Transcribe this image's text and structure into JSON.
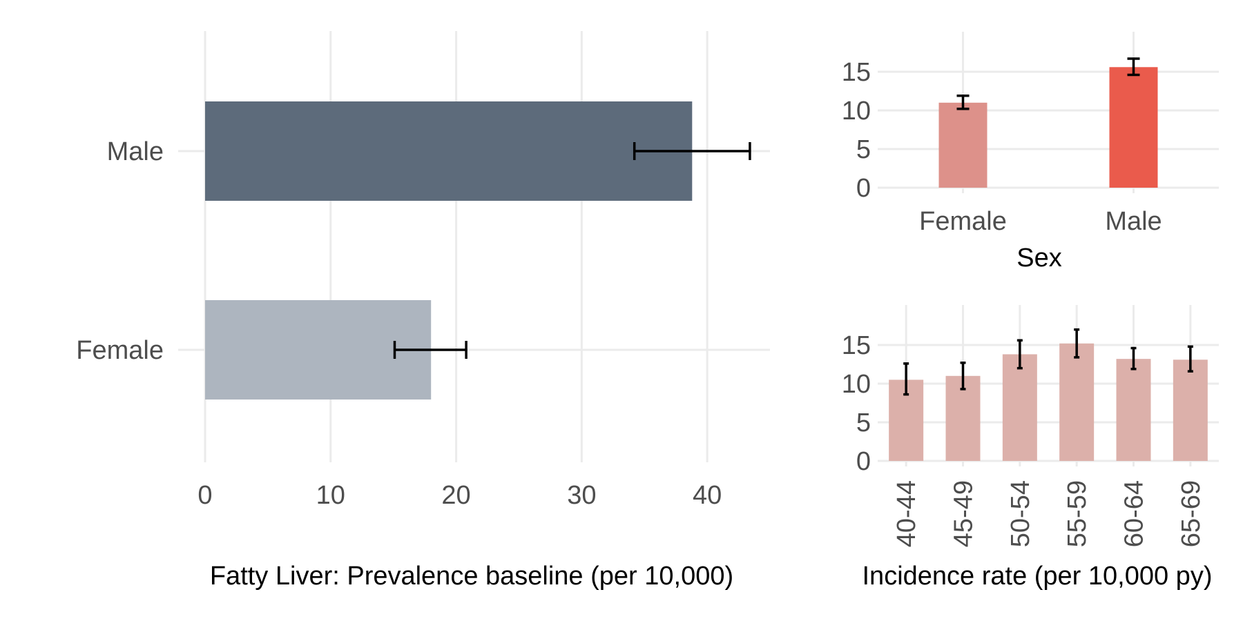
{
  "chart_data": [
    {
      "type": "bar",
      "orientation": "horizontal",
      "title": "",
      "xlabel": "Fatty Liver: Prevalence baseline (per 10,000)",
      "ylabel": "",
      "categories": [
        "Male",
        "Female"
      ],
      "values": [
        38.8,
        18.0
      ],
      "error_low": [
        34.2,
        15.1
      ],
      "error_high": [
        43.4,
        20.8
      ],
      "bar_colors": [
        "#5d6b7b",
        "#adb5bf"
      ],
      "xlim": [
        0,
        45
      ],
      "xticks": [
        "0",
        "10",
        "20",
        "30",
        "40"
      ],
      "grid": true
    },
    {
      "type": "bar",
      "title": "",
      "xlabel": "Sex",
      "ylabel": "",
      "categories": [
        "Female",
        "Male"
      ],
      "values": [
        11.0,
        15.6
      ],
      "error_low": [
        10.2,
        14.6
      ],
      "error_high": [
        11.9,
        16.7
      ],
      "bar_colors": [
        "#dd918a",
        "#ea5b4c"
      ],
      "ylim": [
        0,
        17.5
      ],
      "yticks": [
        "0",
        "5",
        "10",
        "15"
      ],
      "grid": true
    },
    {
      "type": "bar",
      "title": "",
      "xlabel": "Incidence rate (per 10,000 py)",
      "ylabel": "",
      "categories": [
        "40-44",
        "45-49",
        "50-54",
        "55-59",
        "60-64",
        "65-69"
      ],
      "values": [
        10.5,
        11.0,
        13.8,
        15.2,
        13.2,
        13.1
      ],
      "error_low": [
        8.6,
        9.3,
        12.0,
        13.4,
        11.9,
        11.6
      ],
      "error_high": [
        12.6,
        12.7,
        15.6,
        17.0,
        14.6,
        14.8
      ],
      "bar_colors": [
        "#dcb0aa"
      ],
      "ylim": [
        0,
        17.5
      ],
      "yticks": [
        "0",
        "5",
        "10",
        "15"
      ],
      "grid": true
    }
  ]
}
